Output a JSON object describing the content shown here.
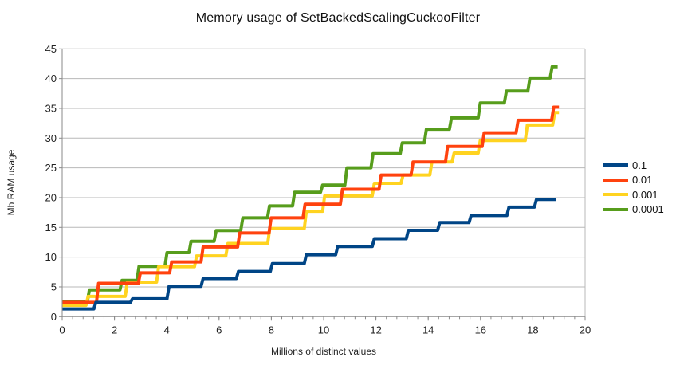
{
  "title": "Memory usage of SetBackedScalingCuckooFilter",
  "axes": {
    "x": {
      "label": "Millions of distinct values",
      "min": 0,
      "max": 20,
      "ticks": [
        0,
        2,
        4,
        6,
        8,
        10,
        12,
        14,
        16,
        18,
        20
      ],
      "minor_tick_step": 0.4
    },
    "y": {
      "label": "Mb RAM usage",
      "min": 0,
      "max": 45,
      "ticks": [
        0,
        5,
        10,
        15,
        20,
        25,
        30,
        35,
        40,
        45
      ]
    }
  },
  "legend": [
    {
      "label": "0.1",
      "color": "#004586"
    },
    {
      "label": "0.01",
      "color": "#FF420E"
    },
    {
      "label": "0.001",
      "color": "#FFD320"
    },
    {
      "label": "0.0001",
      "color": "#579D1C"
    }
  ],
  "colors": {
    "grid": "#b8b8b8",
    "axis": "#8a8a8a",
    "tick_text": "#222222",
    "background": "#ffffff"
  },
  "chart_data": {
    "type": "line",
    "step": true,
    "title": "Memory usage of SetBackedScalingCuckooFilter",
    "xlabel": "Millions of distinct values",
    "ylabel": "Mb RAM usage",
    "xlim": [
      0,
      20
    ],
    "ylim": [
      0,
      45
    ],
    "grid": "horizontal",
    "legend_position": "right",
    "series": [
      {
        "name": "0.0001",
        "color": "#579D1C",
        "points": [
          [
            0,
            2.45
          ],
          [
            1.0,
            4.5
          ],
          [
            2.25,
            6.1
          ],
          [
            2.9,
            8.45
          ],
          [
            3.97,
            10.75
          ],
          [
            4.89,
            12.66
          ],
          [
            5.85,
            14.46
          ],
          [
            6.87,
            16.6
          ],
          [
            7.89,
            18.6
          ],
          [
            8.85,
            20.9
          ],
          [
            9.92,
            22.1
          ],
          [
            10.85,
            25.0
          ],
          [
            11.85,
            27.4
          ],
          [
            12.97,
            29.2
          ],
          [
            13.89,
            31.5
          ],
          [
            14.85,
            33.4
          ],
          [
            15.95,
            35.9
          ],
          [
            16.95,
            37.9
          ],
          [
            17.85,
            40.1
          ],
          [
            18.7,
            42.0
          ],
          [
            18.95,
            42.0
          ]
        ]
      },
      {
        "name": "0.001",
        "color": "#FFD320",
        "points": [
          [
            0,
            1.9
          ],
          [
            0.95,
            3.4
          ],
          [
            2.45,
            5.8
          ],
          [
            3.65,
            8.4
          ],
          [
            5.1,
            10.2
          ],
          [
            6.3,
            12.3
          ],
          [
            7.9,
            14.8
          ],
          [
            9.3,
            17.7
          ],
          [
            10.0,
            20.3
          ],
          [
            11.9,
            22.4
          ],
          [
            13.0,
            23.8
          ],
          [
            14.1,
            26.0
          ],
          [
            14.95,
            27.5
          ],
          [
            15.95,
            29.6
          ],
          [
            17.75,
            32.2
          ],
          [
            18.8,
            34.3
          ],
          [
            19.0,
            34.3
          ]
        ]
      },
      {
        "name": "0.01",
        "color": "#FF420E",
        "points": [
          [
            0,
            2.4
          ],
          [
            1.35,
            5.6
          ],
          [
            2.95,
            7.35
          ],
          [
            4.15,
            9.2
          ],
          [
            5.35,
            11.7
          ],
          [
            6.75,
            14.05
          ],
          [
            7.95,
            16.6
          ],
          [
            9.25,
            18.9
          ],
          [
            10.68,
            21.4
          ],
          [
            12.16,
            23.8
          ],
          [
            13.38,
            26.0
          ],
          [
            14.7,
            28.6
          ],
          [
            16.1,
            30.9
          ],
          [
            17.4,
            33.0
          ],
          [
            18.76,
            35.2
          ],
          [
            19.0,
            35.2
          ]
        ]
      },
      {
        "name": "0.1",
        "color": "#004586",
        "points": [
          [
            0,
            1.3
          ],
          [
            1.25,
            2.4
          ],
          [
            2.65,
            3.0
          ],
          [
            4.05,
            5.1
          ],
          [
            5.35,
            6.4
          ],
          [
            6.7,
            7.6
          ],
          [
            8.0,
            8.9
          ],
          [
            9.3,
            10.4
          ],
          [
            10.5,
            11.8
          ],
          [
            11.9,
            13.1
          ],
          [
            13.2,
            14.5
          ],
          [
            14.4,
            15.8
          ],
          [
            15.6,
            17.0
          ],
          [
            17.05,
            18.4
          ],
          [
            18.1,
            19.7
          ],
          [
            18.9,
            19.7
          ]
        ]
      }
    ]
  }
}
